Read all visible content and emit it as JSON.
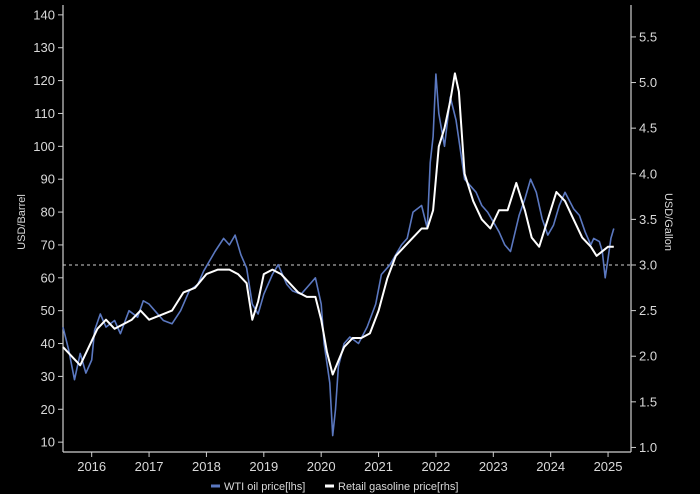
{
  "chart_data": {
    "type": "line",
    "y_left_label": "USD/Barrel",
    "y_right_label": "USD/Gallon",
    "y_left_range": [
      7,
      143
    ],
    "y_right_range": [
      0.95,
      5.85
    ],
    "y_left_ticks": [
      10,
      20,
      30,
      40,
      50,
      60,
      70,
      80,
      90,
      100,
      110,
      120,
      130,
      140
    ],
    "y_right_ticks": [
      1.0,
      1.5,
      2.0,
      2.5,
      3.0,
      3.5,
      4.0,
      4.5,
      5.0,
      5.5
    ],
    "y_left_tick_labels": [
      "10",
      "20",
      "30",
      "40",
      "50",
      "60",
      "70",
      "80",
      "90",
      "100",
      "110",
      "120",
      "130",
      "140"
    ],
    "y_right_tick_labels": [
      "1.0",
      "1.5",
      "2.0",
      "2.5",
      "3.0",
      "3.5",
      "4.0",
      "4.5",
      "5.0",
      "5.5"
    ],
    "x_range": [
      2015.55,
      2025.45
    ],
    "x_ticks": [
      2016.05,
      2017.05,
      2018.05,
      2019.05,
      2020.05,
      2021.05,
      2022.05,
      2023.05,
      2024.05,
      2025.05
    ],
    "x_tick_labels": [
      "2016",
      "2017",
      "2018",
      "2019",
      "2020",
      "2021",
      "2022",
      "2023",
      "2024",
      "2025"
    ],
    "reference_line": {
      "axis": "right",
      "value": 3.0,
      "style": "dashed"
    },
    "grid": false,
    "legend_position": "bottom",
    "series": [
      {
        "name": "WTI oil price[lhs]",
        "axis": "left",
        "color": "#5b78c0",
        "x": [
          2015.55,
          2015.65,
          2015.75,
          2015.85,
          2015.95,
          2016.05,
          2016.1,
          2016.2,
          2016.3,
          2016.45,
          2016.55,
          2016.7,
          2016.85,
          2016.95,
          2017.05,
          2017.15,
          2017.3,
          2017.45,
          2017.6,
          2017.75,
          2017.9,
          2018.0,
          2018.1,
          2018.2,
          2018.35,
          2018.45,
          2018.55,
          2018.65,
          2018.75,
          2018.85,
          2018.95,
          2019.05,
          2019.2,
          2019.3,
          2019.45,
          2019.55,
          2019.7,
          2019.85,
          2019.95,
          2020.05,
          2020.1,
          2020.2,
          2020.25,
          2020.3,
          2020.35,
          2020.45,
          2020.55,
          2020.7,
          2020.85,
          2021.0,
          2021.1,
          2021.25,
          2021.45,
          2021.55,
          2021.65,
          2021.8,
          2021.9,
          2021.95,
          2022.0,
          2022.05,
          2022.1,
          2022.2,
          2022.3,
          2022.4,
          2022.45,
          2022.55,
          2022.65,
          2022.75,
          2022.85,
          2022.95,
          2023.05,
          2023.15,
          2023.25,
          2023.35,
          2023.5,
          2023.6,
          2023.7,
          2023.8,
          2023.9,
          2024.0,
          2024.1,
          2024.2,
          2024.3,
          2024.45,
          2024.55,
          2024.65,
          2024.75,
          2024.8,
          2024.9,
          2024.95,
          2025.0,
          2025.05,
          2025.1,
          2025.15
        ],
        "values": [
          45,
          38,
          29,
          37,
          31,
          35,
          44,
          49,
          45,
          47,
          43,
          50,
          48,
          53,
          52,
          50,
          47,
          46,
          50,
          56,
          58,
          62,
          65,
          68,
          72,
          70,
          73,
          67,
          63,
          52,
          49,
          55,
          61,
          64,
          58,
          56,
          55,
          58,
          60,
          52,
          40,
          28,
          12,
          20,
          33,
          40,
          42,
          40,
          45,
          52,
          61,
          64,
          70,
          72,
          80,
          82,
          75,
          95,
          103,
          122,
          110,
          100,
          115,
          108,
          102,
          90,
          88,
          86,
          82,
          80,
          77,
          74,
          70,
          68,
          79,
          84,
          90,
          86,
          78,
          73,
          76,
          82,
          86,
          81,
          79,
          74,
          70,
          72,
          71,
          68,
          60,
          66,
          72,
          75
        ]
      },
      {
        "name": "Retail gasoline price[rhs]",
        "axis": "right",
        "color": "#ffffff",
        "x": [
          2015.55,
          2015.7,
          2015.85,
          2016.0,
          2016.15,
          2016.3,
          2016.45,
          2016.6,
          2016.75,
          2016.9,
          2017.05,
          2017.25,
          2017.45,
          2017.65,
          2017.85,
          2018.05,
          2018.25,
          2018.45,
          2018.6,
          2018.75,
          2018.85,
          2018.95,
          2019.05,
          2019.2,
          2019.35,
          2019.5,
          2019.65,
          2019.8,
          2019.95,
          2020.05,
          2020.15,
          2020.25,
          2020.35,
          2020.45,
          2020.6,
          2020.75,
          2020.9,
          2021.05,
          2021.2,
          2021.35,
          2021.5,
          2021.65,
          2021.8,
          2021.9,
          2022.0,
          2022.1,
          2022.2,
          2022.3,
          2022.38,
          2022.45,
          2022.55,
          2022.7,
          2022.85,
          2023.0,
          2023.15,
          2023.3,
          2023.45,
          2023.6,
          2023.72,
          2023.85,
          2024.0,
          2024.15,
          2024.3,
          2024.45,
          2024.6,
          2024.75,
          2024.85,
          2024.95,
          2025.05,
          2025.15
        ],
        "values": [
          2.1,
          2.0,
          1.9,
          2.1,
          2.3,
          2.4,
          2.3,
          2.35,
          2.4,
          2.5,
          2.4,
          2.45,
          2.5,
          2.7,
          2.75,
          2.9,
          2.95,
          2.95,
          2.9,
          2.8,
          2.4,
          2.6,
          2.9,
          2.95,
          2.9,
          2.8,
          2.7,
          2.65,
          2.65,
          2.4,
          2.05,
          1.8,
          1.95,
          2.1,
          2.2,
          2.2,
          2.25,
          2.5,
          2.85,
          3.1,
          3.2,
          3.3,
          3.4,
          3.4,
          3.6,
          4.3,
          4.5,
          4.8,
          5.1,
          4.9,
          4.0,
          3.7,
          3.5,
          3.4,
          3.6,
          3.6,
          3.9,
          3.6,
          3.3,
          3.2,
          3.5,
          3.8,
          3.7,
          3.5,
          3.3,
          3.2,
          3.1,
          3.15,
          3.2,
          3.2
        ]
      }
    ]
  }
}
